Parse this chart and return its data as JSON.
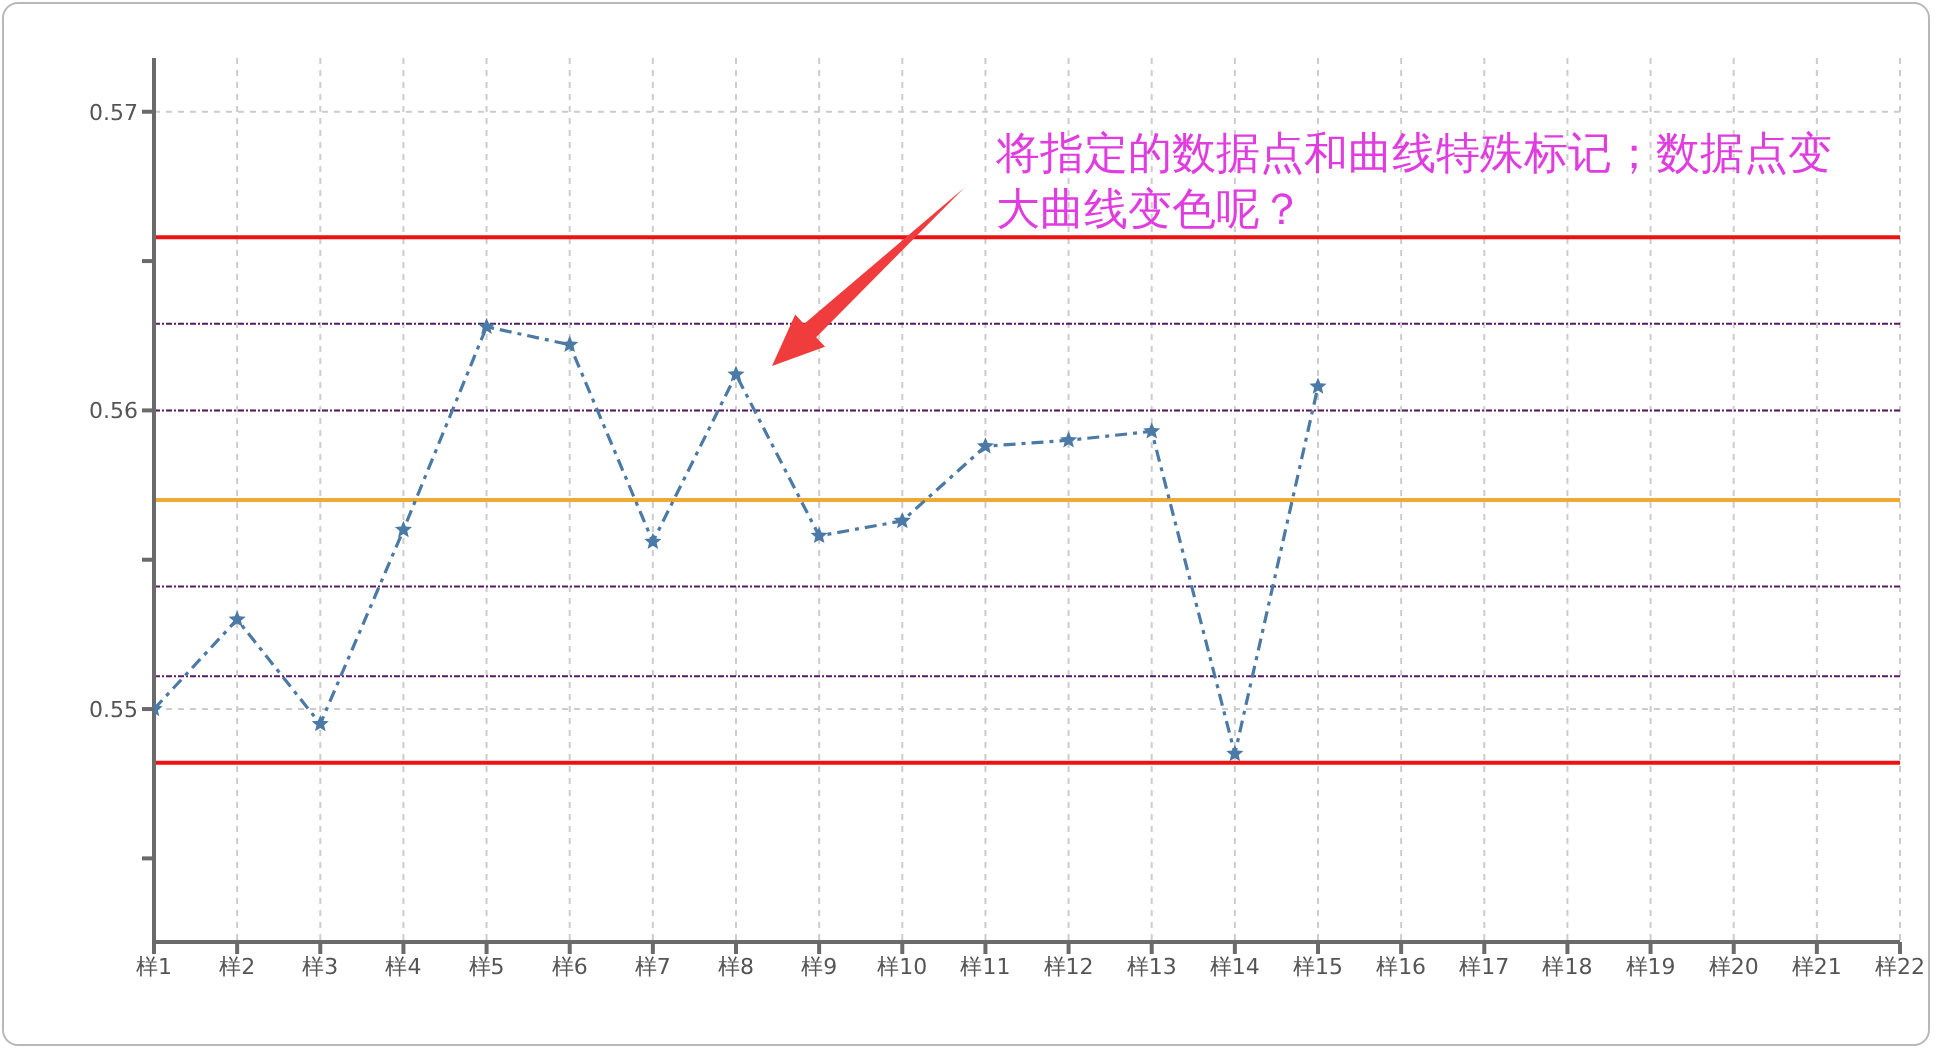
{
  "chart_data": {
    "type": "line",
    "categories": [
      "样1",
      "样2",
      "样3",
      "样4",
      "样5",
      "样6",
      "样7",
      "样8",
      "样9",
      "样10",
      "样11",
      "样12",
      "样13",
      "样14",
      "样15",
      "样16",
      "样17",
      "样18",
      "样19",
      "样20",
      "样21",
      "样22"
    ],
    "series": [
      {
        "color": "#4a7aa5",
        "values": [
          0.55,
          0.553,
          0.5495,
          0.556,
          0.5628,
          0.5622,
          0.5556,
          0.5612,
          0.5558,
          0.5563,
          0.5588,
          0.559,
          0.5593,
          0.5485,
          0.5608,
          null,
          null,
          null,
          null,
          null,
          null,
          null
        ]
      }
    ],
    "ylim": [
      0.5422,
      0.5718
    ],
    "yticks": [
      {
        "value": 0.545,
        "label": null
      },
      0.55,
      {
        "value": 0.555,
        "label": null
      },
      0.56,
      {
        "value": 0.565,
        "label": null
      },
      0.57
    ],
    "ref_lines": [
      {
        "axis": "y",
        "value": 0.5658,
        "color": "#ee1111",
        "line_style": "solid"
      },
      {
        "axis": "y",
        "value": 0.5629,
        "color": "#5a1a66",
        "line_style": "dotted"
      },
      {
        "axis": "y",
        "value": 0.56,
        "color": "#5a1a66",
        "line_style": "dotted"
      },
      {
        "axis": "y",
        "value": 0.557,
        "color": "#eeaa33",
        "line_style": "solid"
      },
      {
        "axis": "y",
        "value": 0.5541,
        "color": "#5a1a66",
        "line_style": "dotted"
      },
      {
        "axis": "y",
        "value": 0.5511,
        "color": "#5a1a66",
        "line_style": "dotted"
      },
      {
        "axis": "y",
        "value": 0.5482,
        "color": "#ee1111",
        "line_style": "solid"
      }
    ],
    "annotations": [
      "将指定的数据点和曲线特殊标记；数据点变大曲线变色呢？"
    ],
    "grid": true,
    "marker": "star",
    "line_style": "dashed"
  }
}
